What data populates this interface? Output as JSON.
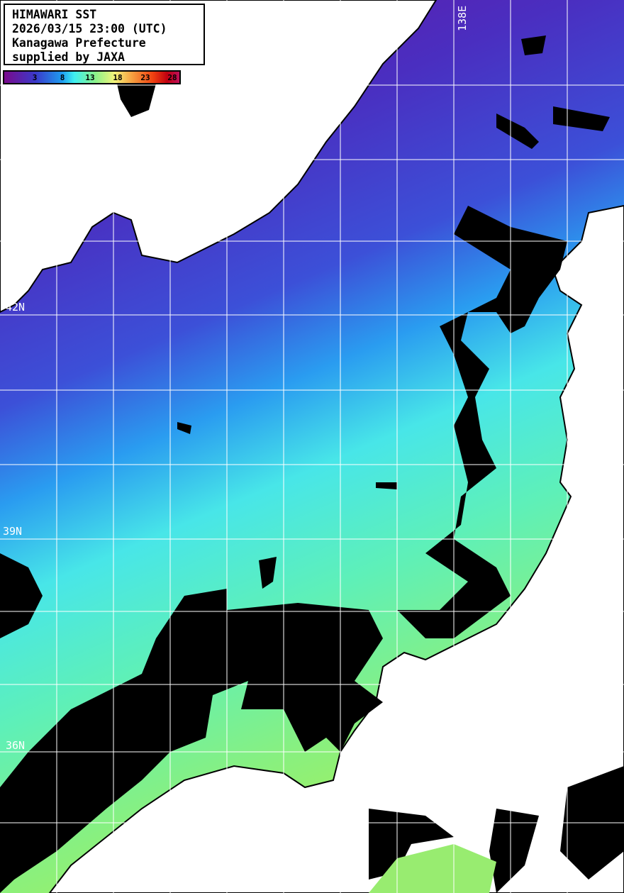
{
  "info_box": {
    "line1": "HIMAWARI SST",
    "line2": "2026/03/15 23:00 (UTC)",
    "line3": "Kanagawa Prefecture",
    "line4": "supplied by JAXA"
  },
  "colorbar": {
    "ticks": [
      "3",
      "8",
      "13",
      "18",
      "23",
      "28"
    ],
    "colors": [
      "#7a0a8c",
      "#3a3acb",
      "#1e9cf0",
      "#3ff0f0",
      "#8af28a",
      "#f4f47a",
      "#f6a040",
      "#f04010",
      "#c00010",
      "#c0105a"
    ]
  },
  "grid_labels": {
    "lat_42": "42N",
    "lat_39": "39N",
    "lat_36": "36N",
    "lon_138": "138E"
  },
  "colors": {
    "land": "#ffffff",
    "cloud": "#000000",
    "grid": "#ffffff"
  }
}
